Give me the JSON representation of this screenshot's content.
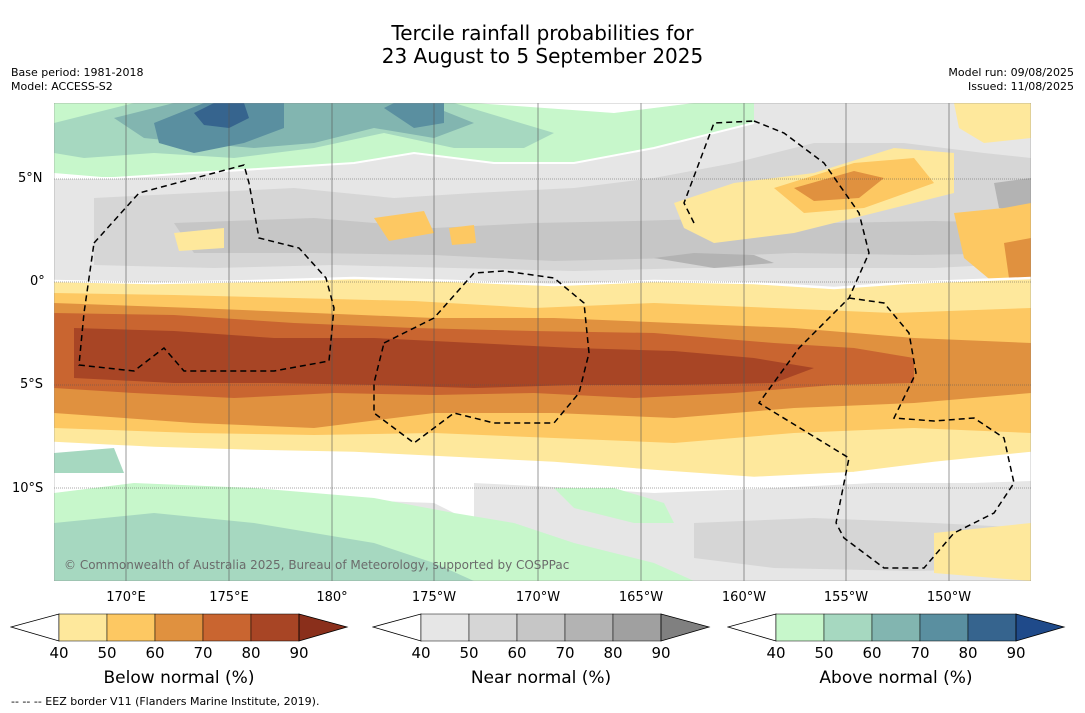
{
  "title_line1": "Tercile rainfall probabilities for",
  "title_line2": "23 August to 5 September 2025",
  "base_period": "Base period: 1981-2018",
  "model": "Model: ACCESS-S2",
  "model_run": "Model run: 09/08/2025",
  "issued": "Issued: 11/08/2025",
  "copyright": "© Commonwealth of Australia 2025, Bureau of Meteorology, supported by COSPPac",
  "footnote": "-- -- -- EEZ border V11 (Flanders Marine Institute, 2019).",
  "lat_labels": [
    "5°N",
    "0°",
    "5°S",
    "10°S"
  ],
  "lon_labels": [
    "170°E",
    "175°E",
    "180°",
    "175°W",
    "170°W",
    "165°W",
    "160°W",
    "155°W",
    "150°W"
  ],
  "colorbars": [
    {
      "title": "Below normal (%)",
      "ticks": [
        "40",
        "50",
        "60",
        "70",
        "80",
        "90"
      ],
      "colors": [
        "#ffffff",
        "#fee89c",
        "#fdc862",
        "#e0913f",
        "#c96530",
        "#a84525",
        "#8a2f1b"
      ]
    },
    {
      "title": "Near normal (%)",
      "ticks": [
        "40",
        "50",
        "60",
        "70",
        "80",
        "90"
      ],
      "colors": [
        "#ffffff",
        "#e6e6e6",
        "#d6d6d6",
        "#c6c6c6",
        "#b3b3b3",
        "#a0a0a0",
        "#808080"
      ]
    },
    {
      "title": "Above normal (%)",
      "ticks": [
        "40",
        "50",
        "60",
        "70",
        "80",
        "90"
      ],
      "colors": [
        "#ffffff",
        "#c7f7cb",
        "#a6d8c0",
        "#82b5b0",
        "#5a8fa0",
        "#36648e",
        "#1f4a8a"
      ]
    }
  ]
}
